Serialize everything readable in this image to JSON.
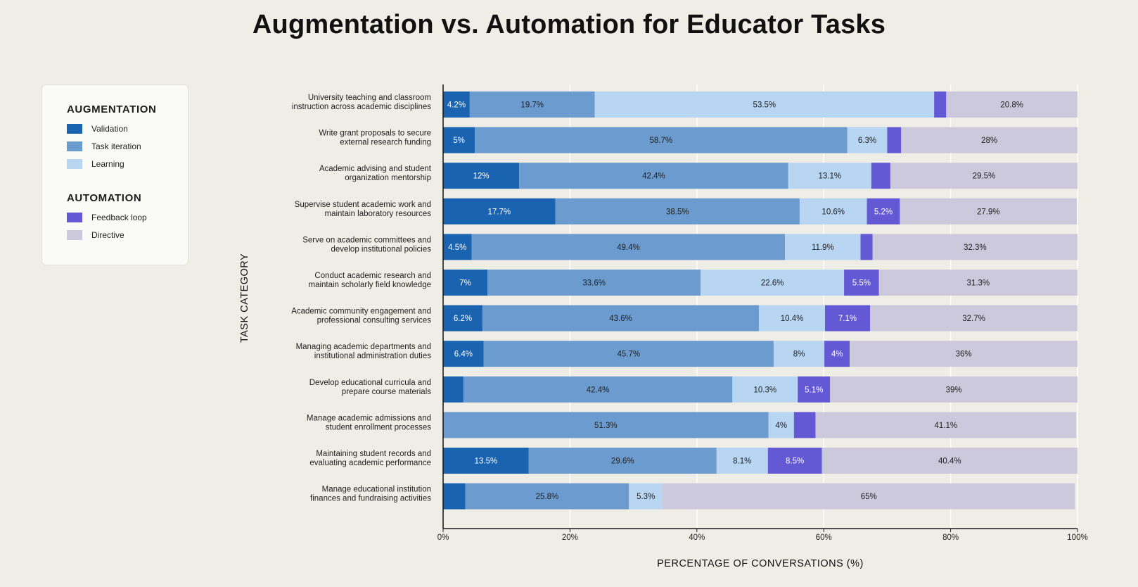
{
  "title": "Augmentation vs. Automation for Educator Tasks",
  "legend": {
    "groups": [
      {
        "heading": "AUGMENTATION",
        "items": [
          {
            "label": "Validation",
            "color": "#1a63b0"
          },
          {
            "label": "Task iteration",
            "color": "#6b9bcf"
          },
          {
            "label": "Learning",
            "color": "#b8d5f2"
          }
        ]
      },
      {
        "heading": "AUTOMATION",
        "items": [
          {
            "label": "Feedback loop",
            "color": "#6459d4"
          },
          {
            "label": "Directive",
            "color": "#cbc9db"
          }
        ]
      }
    ]
  },
  "chart_data": {
    "type": "bar",
    "orientation": "horizontal",
    "stacked": true,
    "title": "Augmentation vs. Automation for Educator Tasks",
    "xlabel": "PERCENTAGE OF CONVERSATIONS (%)",
    "ylabel": "TASK CATEGORY",
    "xlim": [
      0,
      100
    ],
    "x_ticks": [
      "0%",
      "20%",
      "40%",
      "60%",
      "80%",
      "100%"
    ],
    "grid": true,
    "legend_position": "left",
    "categories": [
      "University teaching and classroom|instruction across academic disciplines",
      "Write grant proposals to secure|external research funding",
      "Academic advising and student|organization mentorship",
      "Supervise student academic work and|maintain laboratory resources",
      "Serve on academic committees and|develop institutional policies",
      "Conduct academic research and|maintain scholarly field knowledge",
      "Academic community engagement and|professional consulting services",
      "Managing academic departments and|institutional administration duties",
      "Develop educational curricula and|prepare course materials",
      "Manage academic admissions and|student enrollment processes",
      "Maintaining student records and|evaluating academic performance",
      "Manage educational institution|finances and fundraising activities"
    ],
    "series": [
      {
        "name": "Validation",
        "color": "#1a63b0",
        "values": [
          4.2,
          5,
          12,
          17.7,
          4.5,
          7,
          6.2,
          6.4,
          3.2,
          0,
          13.5,
          3.5
        ],
        "labels": [
          "4.2%",
          "5%",
          "12%",
          "17.7%",
          "4.5%",
          "7%",
          "6.2%",
          "6.4%",
          "",
          "",
          "13.5%",
          ""
        ]
      },
      {
        "name": "Task iteration",
        "color": "#6b9bcf",
        "values": [
          19.7,
          58.7,
          42.4,
          38.5,
          49.4,
          33.6,
          43.6,
          45.7,
          42.4,
          51.3,
          29.6,
          25.8
        ],
        "labels": [
          "19.7%",
          "58.7%",
          "42.4%",
          "38.5%",
          "49.4%",
          "33.6%",
          "43.6%",
          "45.7%",
          "42.4%",
          "51.3%",
          "29.6%",
          "25.8%"
        ]
      },
      {
        "name": "Learning",
        "color": "#b8d5f2",
        "values": [
          53.5,
          6.3,
          13.1,
          10.6,
          11.9,
          22.6,
          10.4,
          8,
          10.3,
          4,
          8.1,
          5.3
        ],
        "labels": [
          "53.5%",
          "6.3%",
          "13.1%",
          "10.6%",
          "11.9%",
          "22.6%",
          "10.4%",
          "8%",
          "10.3%",
          "4%",
          "8.1%",
          "5.3%"
        ]
      },
      {
        "name": "Feedback loop",
        "color": "#6459d4",
        "values": [
          1.9,
          2.2,
          3,
          5.2,
          1.9,
          5.5,
          7.1,
          4,
          5.1,
          3.4,
          8.5,
          0
        ],
        "labels": [
          "",
          "",
          "",
          "5.2%",
          "",
          "5.5%",
          "7.1%",
          "4%",
          "5.1%",
          "",
          "8.5%",
          ""
        ]
      },
      {
        "name": "Directive",
        "color": "#cbc9db",
        "values": [
          20.8,
          28,
          29.5,
          27.9,
          32.3,
          31.3,
          32.7,
          36,
          39,
          41.1,
          40.4,
          65
        ],
        "labels": [
          "20.8%",
          "28%",
          "29.5%",
          "27.9%",
          "32.3%",
          "31.3%",
          "32.7%",
          "36%",
          "39%",
          "41.1%",
          "40.4%",
          "65%"
        ]
      }
    ]
  }
}
